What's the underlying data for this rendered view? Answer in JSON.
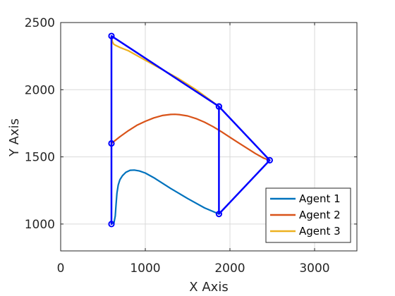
{
  "chart_data": {
    "type": "line",
    "title": "",
    "xlabel": "X Axis",
    "ylabel": "Y Axis",
    "xlim": [
      0,
      3500
    ],
    "ylim": [
      800,
      2500
    ],
    "xticks": [
      0,
      1000,
      2000,
      3000
    ],
    "yticks": [
      1000,
      1500,
      2000,
      2500
    ],
    "grid": true,
    "legend": "bottom-right",
    "series": [
      {
        "name": "Agent 1",
        "color": "#0072BD",
        "x": [
          600,
          630,
          645,
          655,
          665,
          680,
          700,
          730,
          770,
          820,
          870,
          930,
          1000,
          1100,
          1300,
          1500,
          1700,
          1870
        ],
        "y": [
          1000,
          1010,
          1060,
          1150,
          1230,
          1290,
          1330,
          1360,
          1385,
          1400,
          1402,
          1395,
          1380,
          1345,
          1265,
          1190,
          1120,
          1075
        ]
      },
      {
        "name": "Agent 2",
        "color": "#D95319",
        "x": [
          600,
          700,
          800,
          900,
          1000,
          1100,
          1200,
          1300,
          1350,
          1400,
          1500,
          1600,
          1700,
          1800,
          1900,
          2000,
          2100,
          2200,
          2300,
          2400,
          2470
        ],
        "y": [
          1600,
          1650,
          1695,
          1735,
          1765,
          1790,
          1808,
          1816,
          1817,
          1815,
          1805,
          1785,
          1758,
          1725,
          1687,
          1646,
          1605,
          1565,
          1525,
          1490,
          1475
        ]
      },
      {
        "name": "Agent 3",
        "color": "#EDB120",
        "x": [
          600,
          610,
          625,
          650,
          700,
          800,
          1000,
          1200,
          1400,
          1600,
          1870
        ],
        "y": [
          2400,
          2360,
          2340,
          2330,
          2315,
          2290,
          2220,
          2150,
          2080,
          2000,
          1875
        ]
      },
      {
        "name": "",
        "color": "#0000FF",
        "markers": true,
        "x": [
          600,
          600,
          600,
          1870,
          2470,
          1870,
          1870
        ],
        "y": [
          1000,
          1600,
          2400,
          1875,
          1475,
          1075,
          1875
        ]
      }
    ]
  },
  "colors": {
    "formation": "#0000FF",
    "grid": "#d9d9d9",
    "axis": "#262626"
  }
}
